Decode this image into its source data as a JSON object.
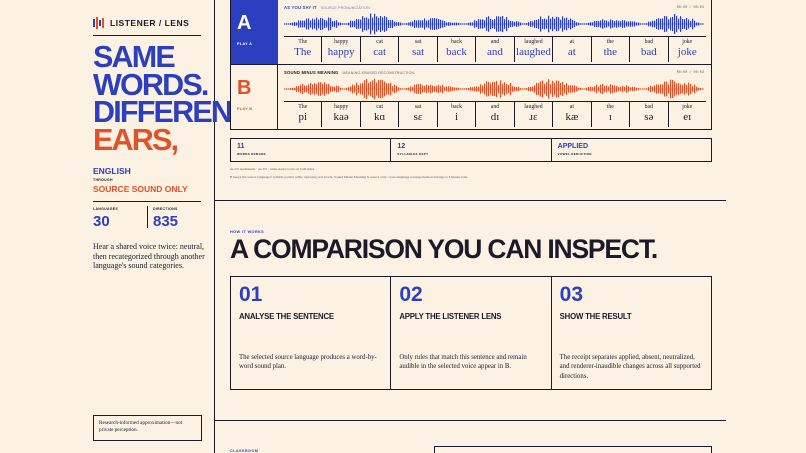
{
  "brand": {
    "name": "LISTENER / LENS",
    "logo_icon": "waveform-logo-icon"
  },
  "hero": {
    "line1": "SAME",
    "line2": "WORDS.",
    "line3": "DIFFERENT",
    "line4": "EARS,"
  },
  "languages": {
    "from": "ENGLISH",
    "through": "THROUGH",
    "to": "SOURCE SOUND ONLY"
  },
  "stats": {
    "languages_label": "LANGUAGES",
    "languages_value": "30",
    "directions_label": "DIRECTIONS",
    "directions_value": "835"
  },
  "sidebar_desc": "Hear a shared voice twice: neutral, then recategorized through another language's sound categories.",
  "note": "Research-informed approximation—not private perception.",
  "receipt": {
    "row_a": {
      "letter": "A",
      "play": "PLAY A",
      "title": "AS YOU SAY IT",
      "subtitle": "SOURCE PRONUNCIATION",
      "time": "00:00 / 00:03",
      "words": [
        {
          "src": "The",
          "out": "The"
        },
        {
          "src": "happy",
          "out": "happy"
        },
        {
          "src": "cat",
          "out": "cat"
        },
        {
          "src": "sat",
          "out": "sat"
        },
        {
          "src": "back",
          "out": "back"
        },
        {
          "src": "and",
          "out": "and"
        },
        {
          "src": "laughed",
          "out": "laughed"
        },
        {
          "src": "at",
          "out": "at"
        },
        {
          "src": "the",
          "out": "the"
        },
        {
          "src": "bad",
          "out": "bad"
        },
        {
          "src": "joke",
          "out": "joke"
        }
      ]
    },
    "row_b": {
      "letter": "B",
      "play": "PLAY B",
      "title": "SOUND MINUS MEANING",
      "subtitle": "MEANING-ERASED RECONSTRUCTION",
      "time": "00:00 / 00:03",
      "words": [
        {
          "src": "The",
          "out": "pi"
        },
        {
          "src": "happy",
          "out": "kaə"
        },
        {
          "src": "cat",
          "out": "kɑ"
        },
        {
          "src": "sat",
          "out": "sɛ"
        },
        {
          "src": "back",
          "out": "i"
        },
        {
          "src": "and",
          "out": "dɪ"
        },
        {
          "src": "laughed",
          "out": "ɹɛ"
        },
        {
          "src": "at",
          "out": "kæ"
        },
        {
          "src": "the",
          "out": "ɪ"
        },
        {
          "src": "bad",
          "out": "sə"
        },
        {
          "src": "joke",
          "out": "eɪ"
        }
      ]
    }
  },
  "summary": [
    {
      "value": "11",
      "label": "WORDS REMADE"
    },
    {
      "value": "12",
      "label": "SYLLABLES KEPT"
    },
    {
      "value": "APPLIED",
      "label": "VOWEL REDUCTION"
    }
  ],
  "fine_print": {
    "line1": "en-US AudiAssist · en-US · same Azure voice on both sides",
    "line2": "B keeps the source language's syllable pattern while replacing real words. Sound Minus Meaning is source only; cross-language recategorization belongs to Listener lens."
  },
  "how_it_works": {
    "label": "HOW IT WORKS",
    "title": "A COMPARISON YOU CAN INSPECT.",
    "steps": [
      {
        "num": "01",
        "title": "ANALYSE THE SENTENCE",
        "desc": "The selected source language produces a word-by-word sound plan."
      },
      {
        "num": "02",
        "title": "APPLY THE LISTENER LENS",
        "desc": "Only rules that match this sentence and remain audible in the selected voice appear in B."
      },
      {
        "num": "03",
        "title": "SHOW THE RESULT",
        "desc": "The receipt separates applied, absent, neutralized, and renderer-inaudible changes across all supported directions."
      }
    ]
  },
  "classroom_label": "CLASSROOM",
  "colors": {
    "accent_blue": "#2b3fbf",
    "accent_red": "#e0522a",
    "background": "#fbf2e4",
    "ink": "#1c1a2a"
  }
}
